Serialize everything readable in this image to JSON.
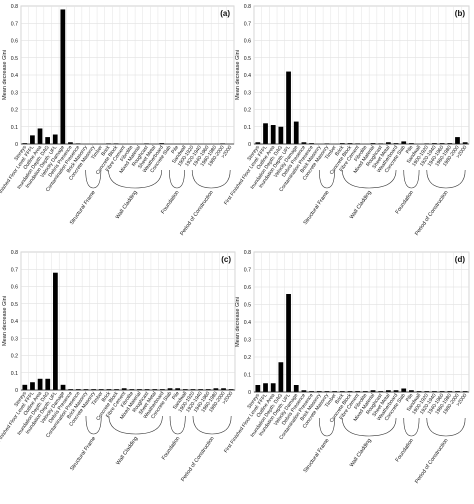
{
  "chart_data": [
    {
      "type": "bar",
      "panel_label": "(a)",
      "ylabel": "Mean decrease Gini",
      "ylim": [
        0,
        0.8
      ],
      "yticks": [
        "0",
        "0.1",
        "0.2",
        "0.3",
        "0.4",
        "0.5",
        "0.6",
        "0.7",
        "0.8"
      ],
      "grid": true,
      "categories": [
        "Storeys",
        "First Finished Floor Level: FFFL",
        "Outline Area",
        "Inundation Depth: DAG",
        "Inundation Depth: UFL",
        "Velocity Damage",
        "Debris Presence",
        "Contamination Presence",
        "Brick Masonry",
        "Concrete Masonry",
        "Timber",
        "Brick",
        "Concrete Block",
        "Fibre Cement",
        "Fibrolite",
        "Mixed Material",
        "Roughcast",
        "Sheet Metal",
        "Weatherboard",
        "Concrete Slab",
        "Pile",
        "Sandwall",
        "1900-1920",
        "1920-1940",
        "1940-1960",
        "1960-1980",
        "1980-2000",
        ">2000"
      ],
      "values": [
        0.005,
        0.05,
        0.09,
        0.04,
        0.055,
        0.78,
        0.01,
        0.002,
        0.0,
        0.0,
        0.0,
        0.002,
        0.002,
        0.0,
        0.0,
        0.0,
        0.002,
        0.0,
        0.005,
        0.0,
        0.0,
        0.0,
        0.0,
        0.0,
        0.0,
        0.0,
        0.002,
        0.0
      ],
      "groups": [
        "Structural Frame",
        "Wall Cladding",
        "Foundation",
        "Period of Construction"
      ]
    },
    {
      "type": "bar",
      "panel_label": "(b)",
      "ylabel": "Mean decrease Gini",
      "ylim": [
        0,
        0.8
      ],
      "yticks": [
        "0",
        "0.1",
        "0.2",
        "0.3",
        "0.4",
        "0.5",
        "0.6",
        "0.7",
        "0.8"
      ],
      "grid": true,
      "categories": [
        "Storeys",
        "First Finished Floor Level: FFFL",
        "Outline Area",
        "Inundation Depth: DAG",
        "Inundation Depth: UFL",
        "Velocity Damage",
        "Debris Presence",
        "Contamination Presence",
        "Brick Masonry",
        "Concrete Masonry",
        "Timber",
        "Brick",
        "Concrete Block",
        "Fibre Cement",
        "Fibrolite",
        "Mixed Material",
        "Roughcast",
        "Sheet Metal",
        "Weatherboard",
        "Concrete Slab",
        "Pile",
        "Sandwall",
        "1900-1920",
        "1920-1940",
        "1940-1960",
        "1960-1980",
        "1980-2000",
        ">2000"
      ],
      "values": [
        0.01,
        0.12,
        0.11,
        0.1,
        0.42,
        0.13,
        0.01,
        0.005,
        0.0,
        0.003,
        0.0,
        0.005,
        0.005,
        0.003,
        0.0,
        0.005,
        0.003,
        0.01,
        0.005,
        0.015,
        0.005,
        0.0,
        0.003,
        0.005,
        0.005,
        0.005,
        0.04,
        0.01
      ],
      "groups": [
        "Structural Frame",
        "Wall Cladding",
        "Foundation",
        "Period of Construction"
      ]
    },
    {
      "type": "bar",
      "panel_label": "(c)",
      "ylabel": "Mean decrease Gini",
      "ylim": [
        0,
        0.8
      ],
      "yticks": [
        "0",
        "0.1",
        "0.2",
        "0.3",
        "0.4",
        "0.5",
        "0.6",
        "0.7",
        "0.8"
      ],
      "grid": true,
      "categories": [
        "Storeys",
        "First Finished Floor Level: FFFL",
        "Outline Area",
        "Inundation Depth: DAG",
        "Inundation Depth: UFL",
        "Velocity Damage",
        "Debris Presence",
        "Contamination Presence",
        "Brick Masonry",
        "Concrete Masonry",
        "Timber",
        "Brick",
        "Concrete Block",
        "Fibre Cement",
        "Fibrolite",
        "Mixed Material",
        "Roughcast",
        "Sheet Metal",
        "Weatherboard",
        "Concrete Slab",
        "Pile",
        "Sandwall",
        "1900-1920",
        "1920-1940",
        "1940-1960",
        "1960-1980",
        "1980-2000",
        ">2000"
      ],
      "values": [
        0.03,
        0.045,
        0.065,
        0.065,
        0.68,
        0.03,
        0.005,
        0.005,
        0.005,
        0.005,
        0.005,
        0.005,
        0.005,
        0.01,
        0.005,
        0.005,
        0.005,
        0.005,
        0.005,
        0.01,
        0.01,
        0.005,
        0.005,
        0.005,
        0.005,
        0.01,
        0.01,
        0.005
      ],
      "groups": [
        "Structural Frame",
        "Wall Cladding",
        "Foundation",
        "Period of Construction"
      ]
    },
    {
      "type": "bar",
      "panel_label": "(d)",
      "ylabel": "Mean decrease Gini",
      "ylim": [
        0,
        0.8
      ],
      "yticks": [
        "0",
        "0.1",
        "0.2",
        "0.3",
        "0.4",
        "0.5",
        "0.6",
        "0.7",
        "0.8"
      ],
      "grid": true,
      "categories": [
        "Storeys",
        "First Finished Floor Level: FFFL",
        "Outline Area",
        "Inundation Depth: DAG",
        "Inundation Depth: UFL",
        "Velocity Damage",
        "Debris Presence",
        "Contamination Presence",
        "Brick Masonry",
        "Concrete Masonry",
        "Timber",
        "Brick",
        "Concrete Block",
        "Fibre Cement",
        "Fibrolite",
        "Mixed Material",
        "Roughcast",
        "Sheet Metal",
        "Weatherboard",
        "Concrete Slab",
        "Pile",
        "Sandwall",
        "1900-1920",
        "1920-1940",
        "1940-1960",
        "1960-1980",
        "1980-2000",
        ">2000"
      ],
      "values": [
        0.04,
        0.05,
        0.05,
        0.17,
        0.56,
        0.04,
        0.01,
        0.005,
        0.005,
        0.005,
        0.005,
        0.005,
        0.005,
        0.005,
        0.005,
        0.01,
        0.005,
        0.01,
        0.01,
        0.02,
        0.01,
        0.005,
        0.005,
        0.005,
        0.005,
        0.005,
        0.005,
        0.005
      ],
      "groups": [
        "Structural Frame",
        "Wall Cladding",
        "Foundation",
        "Period of Construction"
      ]
    }
  ]
}
